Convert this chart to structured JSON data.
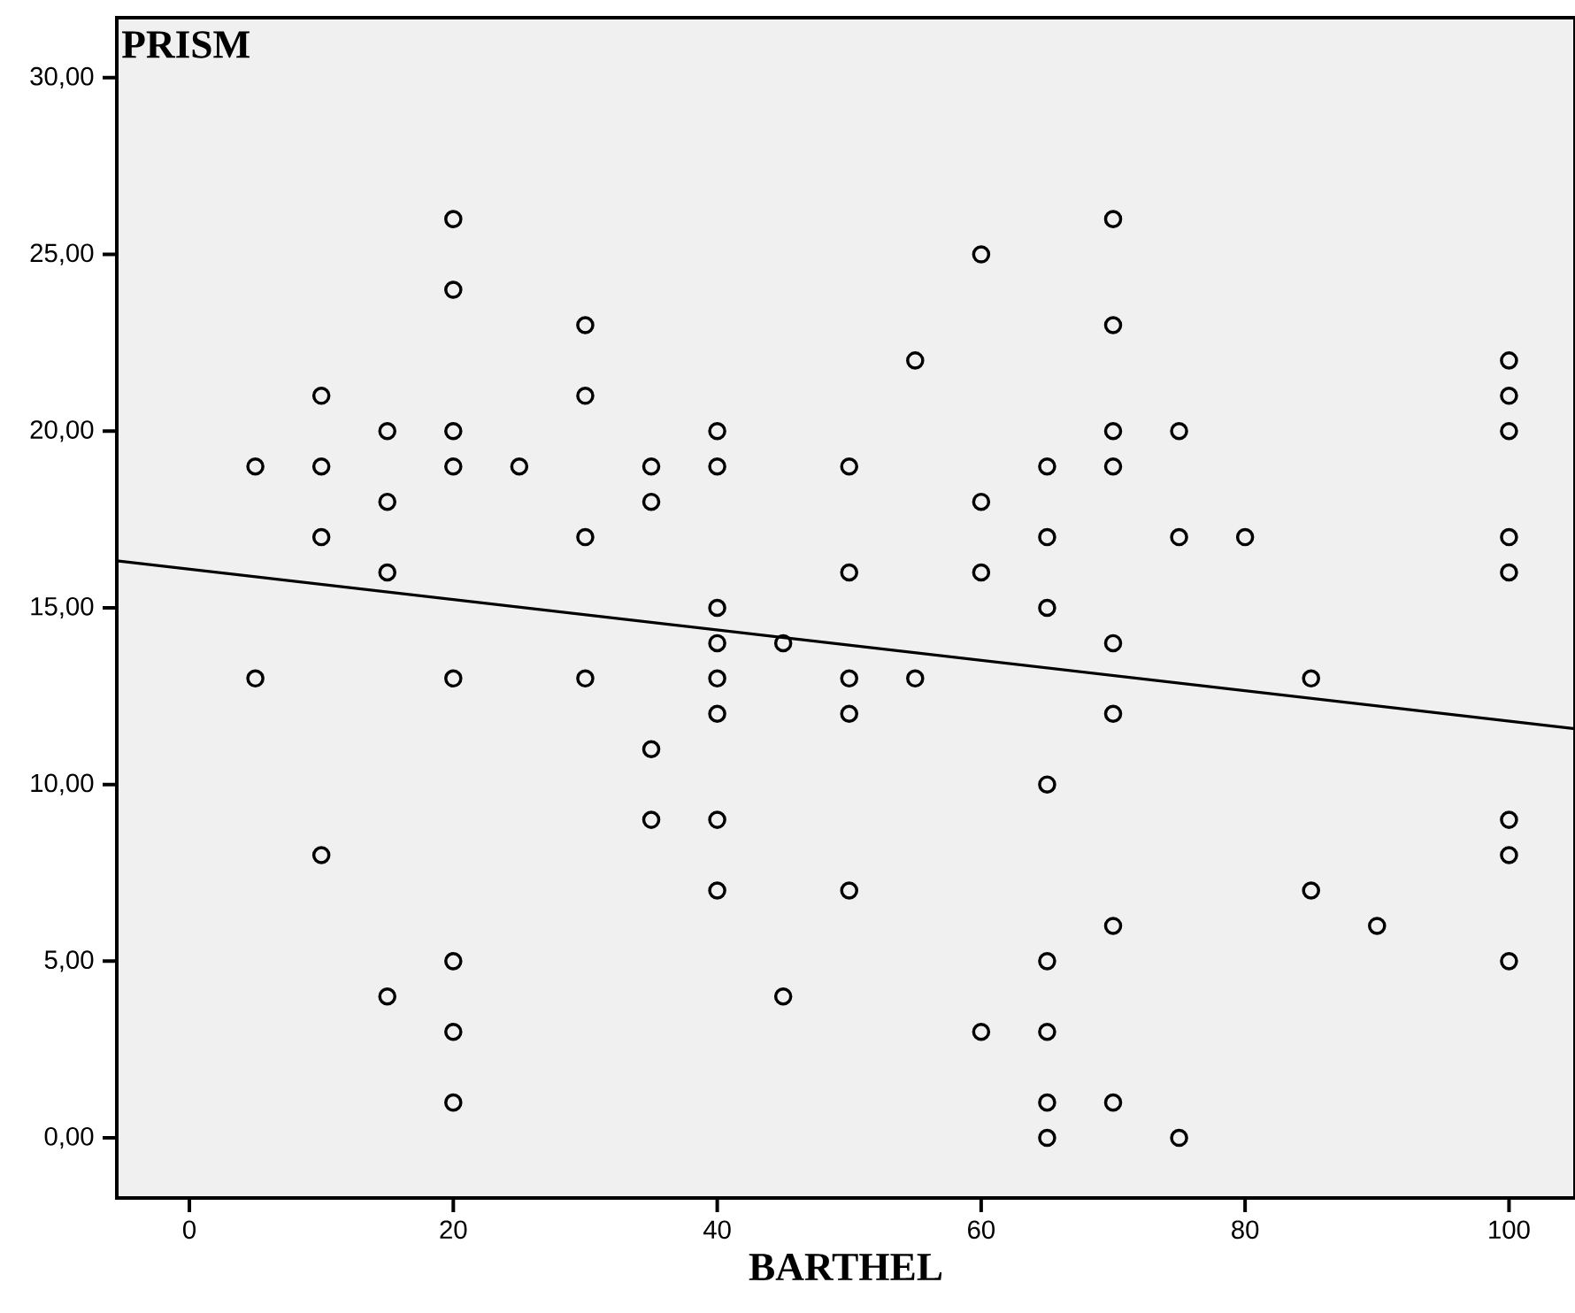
{
  "chart_data": {
    "type": "scatter",
    "xlabel": "BARTHEL",
    "ylabel": "PRISM",
    "xlim": [
      -5.5,
      105
    ],
    "ylim": [
      -1.7,
      31.7
    ],
    "xticks": [
      0,
      20,
      40,
      60,
      80,
      100
    ],
    "yticks": [
      {
        "value": 0,
        "label": "0,00"
      },
      {
        "value": 5,
        "label": "5,00"
      },
      {
        "value": 10,
        "label": "10,00"
      },
      {
        "value": 15,
        "label": "15,00"
      },
      {
        "value": 20,
        "label": "20,00"
      },
      {
        "value": 25,
        "label": "25,00"
      },
      {
        "value": 30,
        "label": "30,00"
      }
    ],
    "series": [
      {
        "marker": "circle",
        "color": "#000000",
        "x": [
          5,
          5,
          10,
          10,
          10,
          10,
          15,
          15,
          15,
          15,
          20,
          20,
          20,
          20,
          20,
          20,
          20,
          20,
          25,
          30,
          30,
          30,
          30,
          35,
          35,
          35,
          35,
          40,
          40,
          40,
          40,
          40,
          40,
          40,
          40,
          45,
          45,
          50,
          50,
          50,
          50,
          50,
          55,
          55,
          60,
          60,
          60,
          60,
          65,
          65,
          65,
          65,
          65,
          65,
          65,
          65,
          70,
          70,
          70,
          70,
          70,
          70,
          70,
          70,
          75,
          75,
          75,
          80,
          85,
          85,
          90,
          100,
          100,
          100,
          100,
          100,
          100,
          100,
          100
        ],
        "values": [
          19,
          13,
          21,
          19,
          17,
          8,
          20,
          18,
          16,
          4,
          26,
          24,
          20,
          19,
          13,
          5,
          3,
          1,
          19,
          23,
          21,
          17,
          13,
          19,
          18,
          11,
          9,
          20,
          19,
          15,
          14,
          13,
          12,
          9,
          7,
          14,
          4,
          19,
          16,
          13,
          12,
          7,
          22,
          13,
          25,
          18,
          16,
          3,
          19,
          17,
          15,
          10,
          5,
          3,
          1,
          0,
          26,
          23,
          20,
          19,
          14,
          12,
          6,
          1,
          20,
          17,
          0,
          17,
          13,
          7,
          6,
          22,
          21,
          20,
          17,
          16,
          9,
          8,
          5
        ]
      },
      {
        "type": "line",
        "marker": "none",
        "color": "#000000",
        "x": [
          -5.5,
          105
        ],
        "values": [
          16.33,
          11.58
        ]
      }
    ]
  }
}
